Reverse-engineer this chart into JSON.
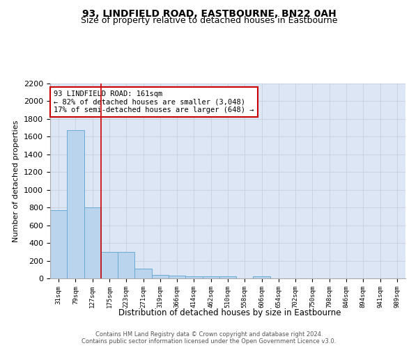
{
  "title": "93, LINDFIELD ROAD, EASTBOURNE, BN22 0AH",
  "subtitle": "Size of property relative to detached houses in Eastbourne",
  "xlabel": "Distribution of detached houses by size in Eastbourne",
  "ylabel": "Number of detached properties",
  "categories": [
    "31sqm",
    "79sqm",
    "127sqm",
    "175sqm",
    "223sqm",
    "271sqm",
    "319sqm",
    "366sqm",
    "414sqm",
    "462sqm",
    "510sqm",
    "558sqm",
    "606sqm",
    "654sqm",
    "702sqm",
    "750sqm",
    "798sqm",
    "846sqm",
    "894sqm",
    "941sqm",
    "989sqm"
  ],
  "values": [
    770,
    1670,
    800,
    300,
    295,
    110,
    40,
    30,
    25,
    20,
    20,
    0,
    25,
    0,
    0,
    0,
    0,
    0,
    0,
    0,
    0
  ],
  "bar_color": "#bad4ee",
  "bar_edge_color": "#6aaad4",
  "grid_color": "#c8d0dc",
  "background_color": "#dce6f5",
  "vline_x": 2.5,
  "vline_color": "#cc0000",
  "annotation_text": "93 LINDFIELD ROAD: 161sqm\n← 82% of detached houses are smaller (3,048)\n17% of semi-detached houses are larger (648) →",
  "annotation_box_color": "#ffffff",
  "annotation_box_edge": "#cc0000",
  "ylim": [
    0,
    2200
  ],
  "yticks": [
    0,
    200,
    400,
    600,
    800,
    1000,
    1200,
    1400,
    1600,
    1800,
    2000,
    2200
  ],
  "footer": "Contains HM Land Registry data © Crown copyright and database right 2024.\nContains public sector information licensed under the Open Government Licence v3.0.",
  "title_fontsize": 10,
  "subtitle_fontsize": 9
}
